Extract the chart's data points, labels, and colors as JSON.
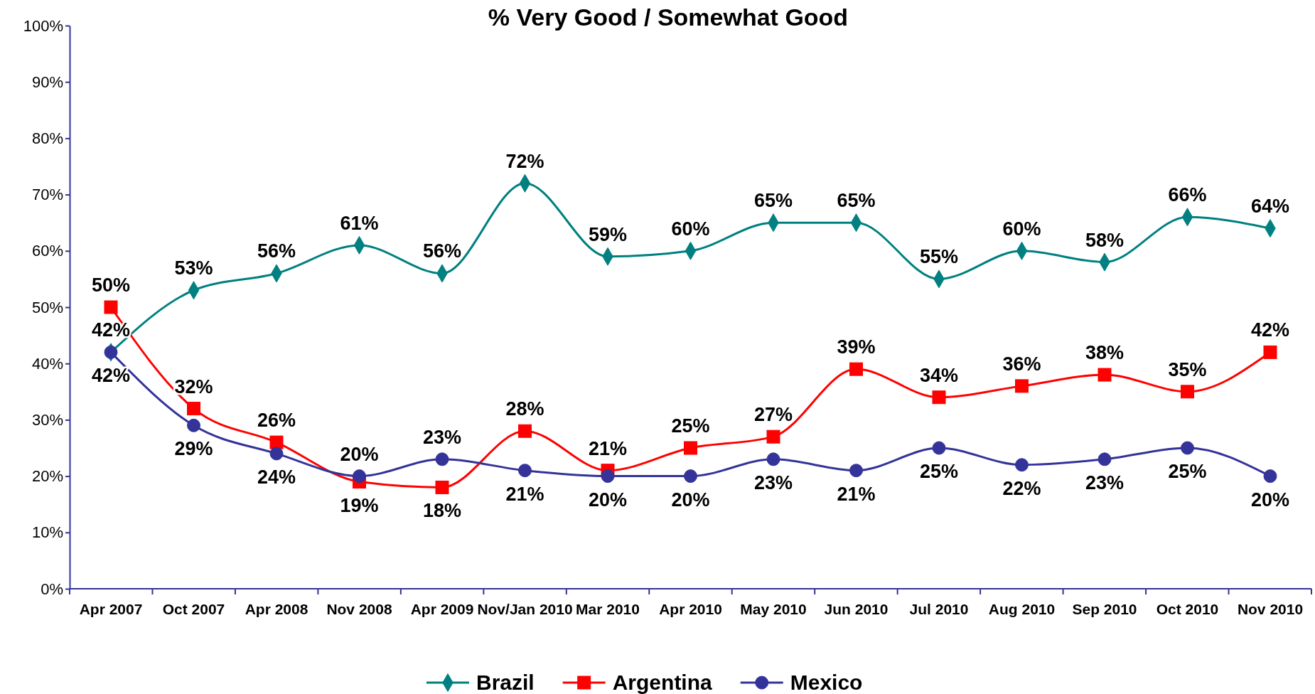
{
  "chart_data": {
    "type": "line",
    "title": "% Very Good / Somewhat Good",
    "categories": [
      "Apr 2007",
      "Oct 2007",
      "Apr 2008",
      "Nov 2008",
      "Apr 2009",
      "Nov/Jan 2010",
      "Mar 2010",
      "Apr 2010",
      "May 2010",
      "Jun 2010",
      "Jul 2010",
      "Aug 2010",
      "Sep 2010",
      "Oct 2010",
      "Nov 2010"
    ],
    "series": [
      {
        "name": "Brazil",
        "color": "#008080",
        "marker": "diamond",
        "values": [
          42,
          53,
          56,
          61,
          56,
          72,
          59,
          60,
          65,
          65,
          55,
          60,
          58,
          66,
          64
        ],
        "value_labels": [
          "42%",
          "53%",
          "56%",
          "61%",
          "56%",
          "72%",
          "59%",
          "60%",
          "65%",
          "65%",
          "55%",
          "60%",
          "58%",
          "66%",
          "64%"
        ]
      },
      {
        "name": "Argentina",
        "color": "#ff0000",
        "marker": "square",
        "values": [
          50,
          32,
          26,
          19,
          18,
          28,
          21,
          25,
          27,
          39,
          34,
          36,
          38,
          35,
          42
        ],
        "value_labels": [
          "50%",
          "32%",
          "26%",
          "19%",
          "18%",
          "28%",
          "21%",
          "25%",
          "27%",
          "39%",
          "34%",
          "36%",
          "38%",
          "35%",
          "42%"
        ]
      },
      {
        "name": "Mexico",
        "color": "#333399",
        "marker": "circle",
        "values": [
          42,
          29,
          24,
          20,
          23,
          21,
          20,
          20,
          23,
          21,
          25,
          22,
          23,
          25,
          20
        ],
        "value_labels": [
          "42%",
          "29%",
          "24%",
          "20%",
          "23%",
          "21%",
          "20%",
          "20%",
          "23%",
          "21%",
          "25%",
          "22%",
          "23%",
          "25%",
          "20%"
        ]
      }
    ],
    "ylim": [
      0,
      100
    ],
    "yticks": [
      {
        "value": 0,
        "label": "0%"
      },
      {
        "value": 10,
        "label": "10%"
      },
      {
        "value": 20,
        "label": "20%"
      },
      {
        "value": 30,
        "label": "30%"
      },
      {
        "value": 40,
        "label": "40%"
      },
      {
        "value": 50,
        "label": "50%"
      },
      {
        "value": 60,
        "label": "60%"
      },
      {
        "value": 70,
        "label": "70%"
      },
      {
        "value": 80,
        "label": "80%"
      },
      {
        "value": 90,
        "label": "90%"
      },
      {
        "value": 100,
        "label": "100%"
      }
    ],
    "grid": false,
    "legend": "bottom"
  }
}
